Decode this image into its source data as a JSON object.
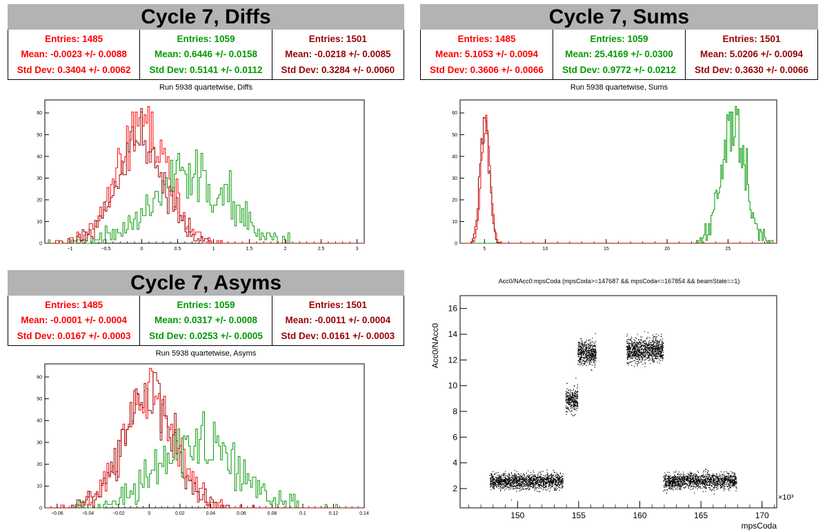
{
  "colors": {
    "red": "#ff0000",
    "green": "#009900",
    "darkred": "#990000"
  },
  "panels": {
    "diffs": {
      "banner": "Cycle 7, Diffs",
      "subtitle": "Run 5938 quartetwise, Diffs",
      "stats": [
        {
          "entries": "Entries: 1485",
          "mean": "Mean: -0.0023 +/- 0.0088",
          "std": "Std Dev: 0.3404 +/- 0.0062",
          "color": "#ff0000"
        },
        {
          "entries": "Entries: 1059",
          "mean": "Mean: 0.6446 +/- 0.0158",
          "std": "Std Dev: 0.5141 +/- 0.0112",
          "color": "#009900"
        },
        {
          "entries": "Entries: 1501",
          "mean": "Mean: -0.0218 +/- 0.0085",
          "std": "Std Dev: 0.3284 +/- 0.0060",
          "color": "#990000"
        }
      ]
    },
    "sums": {
      "banner": "Cycle 7, Sums",
      "subtitle": "Run 5938 quartetwise, Sums",
      "stats": [
        {
          "entries": "Entries: 1485",
          "mean": "Mean: 5.1053 +/- 0.0094",
          "std": "Std Dev: 0.3606 +/- 0.0066",
          "color": "#ff0000"
        },
        {
          "entries": "Entries: 1059",
          "mean": "Mean: 25.4169 +/- 0.0300",
          "std": "Std Dev: 0.9772 +/- 0.0212",
          "color": "#009900"
        },
        {
          "entries": "Entries: 1501",
          "mean": "Mean: 5.0206 +/- 0.0094",
          "std": "Std Dev: 0.3630 +/- 0.0066",
          "color": "#990000"
        }
      ]
    },
    "asyms": {
      "banner": "Cycle 7, Asyms",
      "subtitle": "Run 5938 quartetwise, Asyms",
      "stats": [
        {
          "entries": "Entries: 1485",
          "mean": "Mean: -0.0001 +/- 0.0004",
          "std": "Std Dev: 0.0167 +/- 0.0003",
          "color": "#ff0000"
        },
        {
          "entries": "Entries: 1059",
          "mean": "Mean: 0.0317 +/- 0.0008",
          "std": "Std Dev: 0.0253 +/- 0.0005",
          "color": "#009900"
        },
        {
          "entries": "Entries: 1501",
          "mean": "Mean: -0.0011 +/- 0.0004",
          "std": "Std Dev: 0.0161 +/- 0.0003",
          "color": "#990000"
        }
      ]
    },
    "scatter": {
      "title": "Acc0/NAcc0:mpsCoda (mpsCoda>=147687 && mpsCoda<=167854 && beamState==1)"
    }
  },
  "chart_data": [
    {
      "type": "bar",
      "title": "Run 5938 quartetwise, Diffs",
      "xlim": [
        -1.35,
        3.1
      ],
      "ylim": [
        0,
        66
      ],
      "xticks": [
        -1,
        -0.5,
        0,
        0.5,
        1,
        1.5,
        2,
        2.5,
        3
      ],
      "xtick_labels": [
        "−1",
        "−0.5",
        "0",
        "0.5",
        "1",
        "1.5",
        "2",
        "2.5",
        "3"
      ],
      "yticks": [
        0,
        10,
        20,
        30,
        40,
        50,
        60
      ],
      "series": [
        {
          "mean": -0.0023,
          "std": 0.3404,
          "entries": 1485,
          "peak": 63,
          "color": "#ff0000"
        },
        {
          "mean": 0.6446,
          "std": 0.5141,
          "entries": 1059,
          "peak": 43,
          "color": "#009900"
        },
        {
          "mean": -0.0218,
          "std": 0.3284,
          "entries": 1501,
          "peak": 62,
          "color": "#990000"
        }
      ]
    },
    {
      "type": "bar",
      "title": "Run 5938 quartetwise, Sums",
      "xlim": [
        3,
        29
      ],
      "ylim": [
        0,
        66
      ],
      "xticks": [
        5,
        10,
        15,
        20,
        25
      ],
      "xtick_labels": [
        "5",
        "10",
        "15",
        "20",
        "25"
      ],
      "yticks": [
        0,
        10,
        20,
        30,
        40,
        50,
        60
      ],
      "series": [
        {
          "mean": 5.1053,
          "std": 0.3606,
          "entries": 1485,
          "peak": 59,
          "color": "#ff0000"
        },
        {
          "mean": 25.4169,
          "std": 0.9772,
          "entries": 1059,
          "peak": 63,
          "color": "#009900"
        },
        {
          "mean": 5.0206,
          "std": 0.363,
          "entries": 1501,
          "peak": 58,
          "color": "#990000"
        }
      ]
    },
    {
      "type": "bar",
      "title": "Run 5938 quartetwise, Asyms",
      "xlim": [
        -0.068,
        0.14
      ],
      "ylim": [
        0,
        66
      ],
      "xticks": [
        -0.06,
        -0.04,
        -0.02,
        0,
        0.02,
        0.04,
        0.06,
        0.08,
        0.1,
        0.12,
        0.14
      ],
      "xtick_labels": [
        "−0.06",
        "−0.04",
        "−0.02",
        "0",
        "0.02",
        "0.04",
        "0.06",
        "0.08",
        "0.1",
        "0.12",
        "0.14"
      ],
      "yticks": [
        0,
        10,
        20,
        30,
        40,
        50,
        60
      ],
      "series": [
        {
          "mean": -0.0001,
          "std": 0.0167,
          "entries": 1485,
          "peak": 64,
          "color": "#ff0000"
        },
        {
          "mean": 0.0317,
          "std": 0.0253,
          "entries": 1059,
          "peak": 44,
          "color": "#009900"
        },
        {
          "mean": -0.0011,
          "std": 0.0161,
          "entries": 1501,
          "peak": 62,
          "color": "#990000"
        }
      ]
    },
    {
      "type": "scatter",
      "title": "Acc0/NAcc0:mpsCoda (mpsCoda>=147687 && mpsCoda<=167854 && beamState==1)",
      "xlabel": "mpsCoda",
      "ylabel": "Acc0/NAcc0",
      "x_exponent": "×10³",
      "xlim": [
        145.3,
        171.2
      ],
      "ylim": [
        0.5,
        17
      ],
      "xticks": [
        150,
        155,
        160,
        165,
        170
      ],
      "xtick_labels": [
        "150",
        "155",
        "160",
        "165",
        "170"
      ],
      "yticks": [
        2,
        4,
        6,
        8,
        10,
        12,
        14,
        16
      ],
      "ytick_labels": [
        "2",
        "4",
        "6",
        "8",
        "10",
        "12",
        "14",
        "16"
      ],
      "clusters": [
        {
          "x": [
            147.7,
            153.7
          ],
          "y": 2.6,
          "spread": 0.6,
          "n": 1400
        },
        {
          "x": [
            153.9,
            154.9
          ],
          "y": 8.9,
          "spread": 0.9,
          "n": 300
        },
        {
          "x": [
            154.9,
            156.4
          ],
          "y": 12.6,
          "spread": 0.9,
          "n": 500
        },
        {
          "x": [
            158.9,
            161.9
          ],
          "y": 12.8,
          "spread": 0.9,
          "n": 1000
        },
        {
          "x": [
            161.9,
            167.9
          ],
          "y": 2.6,
          "spread": 0.6,
          "n": 1400
        }
      ]
    }
  ]
}
